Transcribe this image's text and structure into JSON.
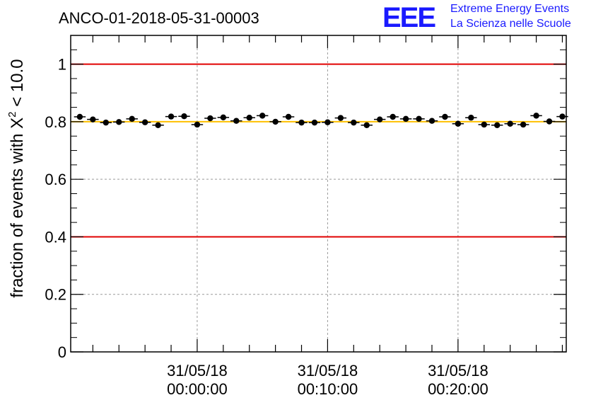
{
  "chart_data": {
    "type": "scatter",
    "title": "ANCO-01-2018-05-31-00003",
    "ylabel_prefix": "fraction of events with ",
    "ylabel_symbol": "X",
    "ylabel_sup": "2",
    "ylabel_suffix": " < 10.0",
    "xlabel": "",
    "ylim": [
      0,
      1.1
    ],
    "y_ticks": [
      "0",
      "0.2",
      "0.4",
      "0.6",
      "0.8",
      "1"
    ],
    "y_tick_values": [
      0,
      0.2,
      0.4,
      0.6,
      0.8,
      1.0
    ],
    "x_range_minutes": [
      -9.7,
      28.3
    ],
    "x_major_ticks": [
      {
        "minutes": 0,
        "date": "31/05/18",
        "time": "00:00:00"
      },
      {
        "minutes": 10,
        "date": "31/05/18",
        "time": "00:10:00"
      },
      {
        "minutes": 20,
        "date": "31/05/18",
        "time": "00:20:00"
      }
    ],
    "grid": true,
    "reference_lines": [
      {
        "y": 1.0,
        "color": "#e00000"
      },
      {
        "y": 0.4,
        "color": "#e00000"
      },
      {
        "y": 0.8,
        "color": "#ffc000"
      }
    ],
    "series": [
      {
        "color": "#000000",
        "x_minutes": [
          -9.0,
          -8.0,
          -7.0,
          -6.0,
          -5.0,
          -4.0,
          -3.0,
          -2.0,
          -1.0,
          0.0,
          1.0,
          2.0,
          3.0,
          4.0,
          5.0,
          6.0,
          7.0,
          8.0,
          9.0,
          10.0,
          11.0,
          12.0,
          13.0,
          14.0,
          15.0,
          16.0,
          17.0,
          18.0,
          19.0,
          20.0,
          21.0,
          22.0,
          23.0,
          24.0,
          25.0,
          26.0,
          27.0,
          28.0
        ],
        "y": [
          0.817,
          0.808,
          0.797,
          0.799,
          0.81,
          0.798,
          0.788,
          0.818,
          0.819,
          0.79,
          0.812,
          0.815,
          0.803,
          0.814,
          0.821,
          0.8,
          0.817,
          0.797,
          0.797,
          0.798,
          0.813,
          0.797,
          0.788,
          0.808,
          0.817,
          0.81,
          0.81,
          0.803,
          0.817,
          0.793,
          0.814,
          0.79,
          0.788,
          0.793,
          0.79,
          0.821,
          0.801,
          0.818
        ],
        "y_err": [
          0.007,
          0.007,
          0.007,
          0.007,
          0.007,
          0.007,
          0.007,
          0.007,
          0.007,
          0.007,
          0.007,
          0.007,
          0.007,
          0.007,
          0.007,
          0.007,
          0.007,
          0.007,
          0.007,
          0.007,
          0.007,
          0.007,
          0.007,
          0.007,
          0.007,
          0.007,
          0.007,
          0.007,
          0.007,
          0.007,
          0.007,
          0.007,
          0.007,
          0.007,
          0.007,
          0.007,
          0.007,
          0.007
        ]
      }
    ]
  },
  "logo": {
    "mark": "EEE",
    "line1": "Extreme Energy Events",
    "line2": "La Scienza nelle Scuole"
  }
}
